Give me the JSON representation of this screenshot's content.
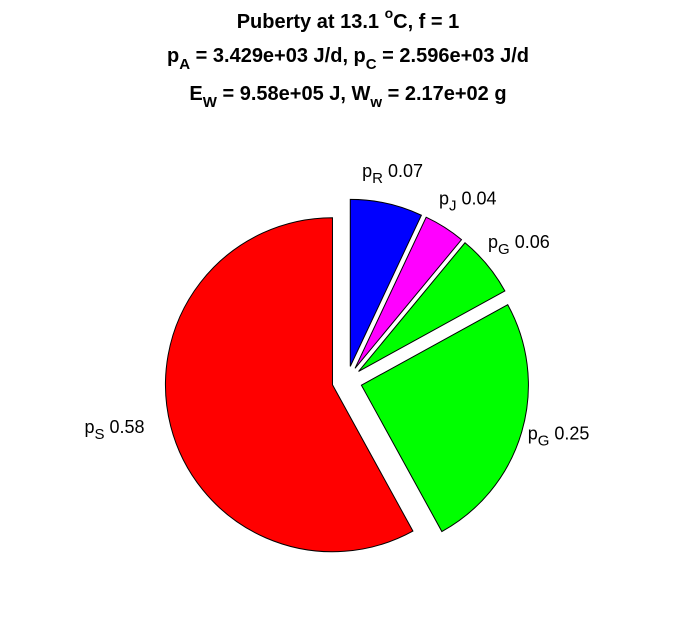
{
  "chart_data": {
    "type": "pie",
    "title": [
      [
        "Puberty at 13.1 ",
        {
          "sup": "o"
        },
        "C, f = 1"
      ],
      [
        "p",
        {
          "sub": "A"
        },
        " = 3.429e+03 J/d,  p",
        {
          "sub": "C"
        },
        " = 2.596e+03 J/d"
      ],
      [
        "E",
        {
          "sub": "W"
        },
        " = 9.58e+05 J, W",
        {
          "sub": "w"
        },
        " = 2.17e+02 g"
      ]
    ],
    "labels": [
      {
        "text": "p",
        "sub": "R"
      },
      {
        "text": "p",
        "sub": "J"
      },
      {
        "text": "p",
        "sub": "G"
      },
      {
        "text": "p",
        "sub": "G"
      },
      {
        "text": "p",
        "sub": "S"
      }
    ],
    "values": [
      0.07,
      0.04,
      0.06,
      0.25,
      0.58
    ],
    "colors": [
      "#0000ff",
      "#ff00ff",
      "#00ff00",
      "#00ff00",
      "#ff0000"
    ],
    "explode": true
  }
}
